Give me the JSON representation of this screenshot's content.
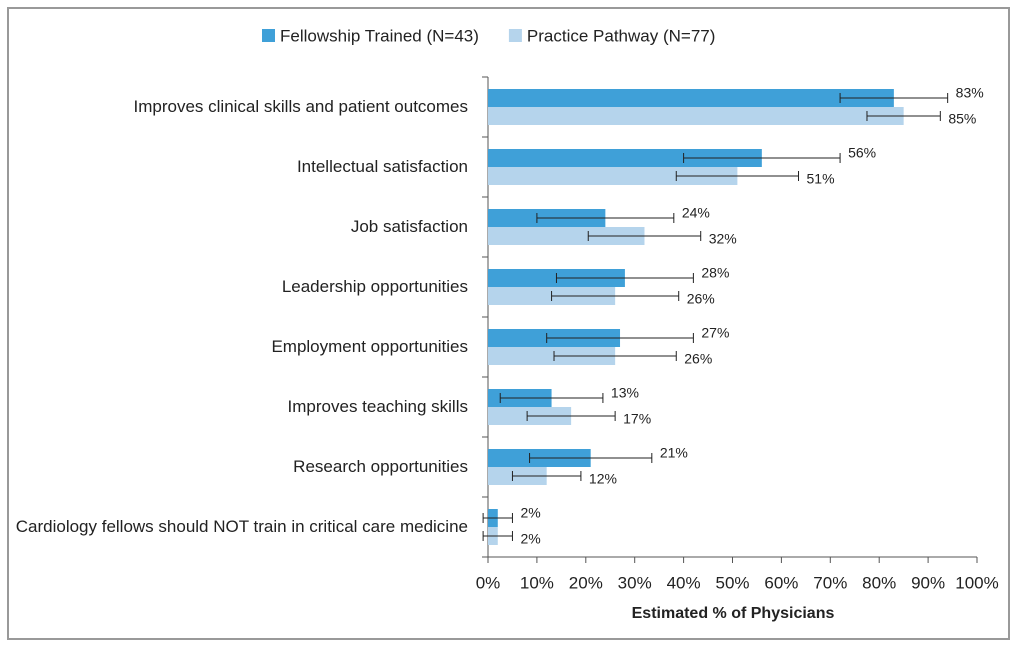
{
  "chart_data": {
    "type": "bar",
    "orientation": "horizontal",
    "xlabel": "Estimated % of Physicians",
    "categories": [
      "Improves clinical skills and patient outcomes",
      "Intellectual satisfaction",
      "Job satisfaction",
      "Leadership opportunities",
      "Employment opportunities",
      "Improves teaching skills",
      "Research opportunities",
      "Cardiology fellows should NOT train in critical care medicine"
    ],
    "series": [
      {
        "name": "Fellowship Trained (N=43)",
        "color": "#3fa0d8",
        "values": [
          83,
          56,
          24,
          28,
          27,
          13,
          21,
          2
        ],
        "value_labels": [
          "83%",
          "56%",
          "24%",
          "28%",
          "27%",
          "13%",
          "21%",
          "2%"
        ],
        "errors": [
          11,
          16,
          14,
          14,
          15,
          10.5,
          12.5,
          3
        ]
      },
      {
        "name": "Practice Pathway (N=77)",
        "color": "#b5d4ec",
        "values": [
          85,
          51,
          32,
          26,
          26,
          17,
          12,
          2
        ],
        "value_labels": [
          "85%",
          "51%",
          "32%",
          "26%",
          "26%",
          "17%",
          "12%",
          "2%"
        ],
        "errors": [
          7.5,
          12.5,
          11.5,
          13,
          12.5,
          9,
          7,
          3
        ]
      }
    ],
    "xlim": [
      0,
      100
    ],
    "xticks": [
      {
        "value": 0,
        "label": "0%"
      },
      {
        "value": 10,
        "label": "10%"
      },
      {
        "value": 20,
        "label": "20%"
      },
      {
        "value": 30,
        "label": "30%"
      },
      {
        "value": 40,
        "label": "40%"
      },
      {
        "value": 50,
        "label": "50%"
      },
      {
        "value": 60,
        "label": "60%"
      },
      {
        "value": 70,
        "label": "70%"
      },
      {
        "value": 80,
        "label": "80%"
      },
      {
        "value": 90,
        "label": "90%"
      },
      {
        "value": 100,
        "label": "100%"
      }
    ],
    "legend": "top"
  }
}
